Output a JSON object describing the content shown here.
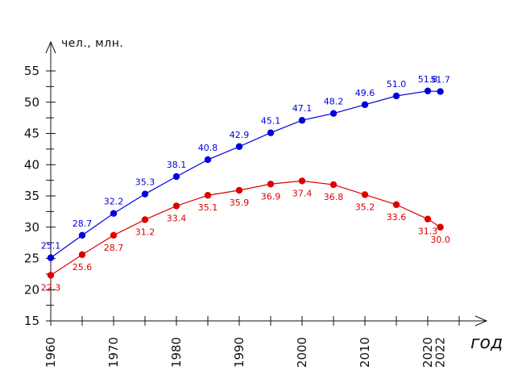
{
  "chart_data": {
    "type": "line",
    "title": "",
    "ylabel": "чел., млн.",
    "xlabel": "год",
    "ylim": [
      15,
      57
    ],
    "yticks": [
      15,
      20,
      25,
      30,
      35,
      40,
      45,
      50,
      55
    ],
    "xlim": [
      1960,
      2026
    ],
    "xtick_labels": [
      "1960",
      "1970",
      "1980",
      "1990",
      "2000",
      "2010",
      "2020",
      "2022"
    ],
    "grid": false,
    "series": [
      {
        "color": "#0000dd",
        "x": [
          1960,
          1965,
          1970,
          1975,
          1980,
          1985,
          1990,
          1995,
          2000,
          2005,
          2010,
          2015,
          2020,
          2022
        ],
        "values": [
          25.1,
          28.7,
          32.2,
          35.3,
          38.1,
          40.8,
          42.9,
          45.1,
          47.1,
          48.2,
          49.6,
          51.0,
          51.8,
          51.7
        ],
        "labels": [
          "25.1",
          "28.7",
          "32.2",
          "35.3",
          "38.1",
          "40.8",
          "42.9",
          "45.1",
          "47.1",
          "48.2",
          "49.6",
          "51.0",
          "51.8",
          "51.7"
        ],
        "label_position": "above"
      },
      {
        "color": "#dd0000",
        "x": [
          1960,
          1965,
          1970,
          1975,
          1980,
          1985,
          1990,
          1995,
          2000,
          2005,
          2010,
          2015,
          2020,
          2022
        ],
        "values": [
          22.3,
          25.6,
          28.7,
          31.2,
          33.4,
          35.1,
          35.9,
          36.9,
          37.4,
          36.8,
          35.2,
          33.6,
          31.3,
          30.0
        ],
        "labels": [
          "22.3",
          "25.6",
          "28.7",
          "31.2",
          "33.4",
          "35.1",
          "35.9",
          "36.9",
          "37.4",
          "36.8",
          "35.2",
          "33.6",
          "31.3",
          "30.0"
        ],
        "label_position": "below"
      }
    ]
  }
}
